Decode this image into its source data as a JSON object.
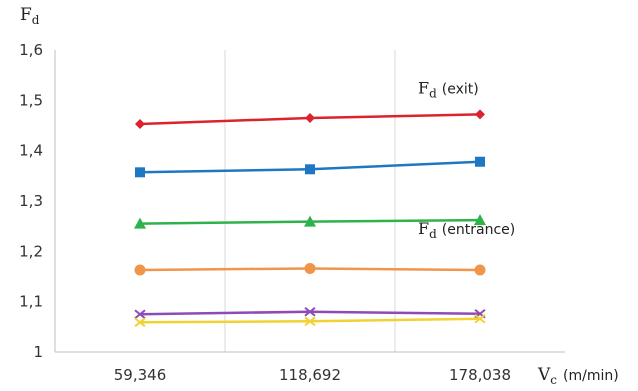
{
  "chart_data": {
    "type": "line",
    "x": [
      "59,346",
      "118,692",
      "178,038"
    ],
    "ylabel": "F",
    "ylabel_sub": "d",
    "xlabel": "V",
    "xlabel_sub": "c",
    "xlabel_unit": "(m/min)",
    "ylim": [
      1,
      1.6
    ],
    "yticks": [
      1,
      1.1,
      1.2,
      1.3,
      1.4,
      1.5,
      1.6
    ],
    "ytick_labels": [
      "1",
      "1,1",
      "1,2",
      "1,3",
      "1,4",
      "1,5",
      "1,6"
    ],
    "grid": "vertical",
    "legend": "none",
    "series": [
      {
        "values": [
          1.453,
          1.465,
          1.472
        ],
        "color": "#d9232d",
        "marker": "diamond"
      },
      {
        "values": [
          1.357,
          1.363,
          1.378
        ],
        "color": "#1f77c4",
        "marker": "square"
      },
      {
        "values": [
          1.255,
          1.259,
          1.262
        ],
        "color": "#2fb24a",
        "marker": "triangle"
      },
      {
        "values": [
          1.163,
          1.166,
          1.163
        ],
        "color": "#f0954a",
        "marker": "circle"
      },
      {
        "values": [
          1.075,
          1.08,
          1.076
        ],
        "color": "#8e4bb5",
        "marker": "x"
      },
      {
        "values": [
          1.059,
          1.061,
          1.066
        ],
        "color": "#f2d233",
        "marker": "x"
      }
    ],
    "annotations": [
      {
        "main": "F",
        "sub": "d",
        "paren": "(exit)",
        "x": 2,
        "y": 1.52
      },
      {
        "main": "F",
        "sub": "d",
        "paren": "(entrance)",
        "x": 2,
        "y": 1.24
      }
    ]
  }
}
